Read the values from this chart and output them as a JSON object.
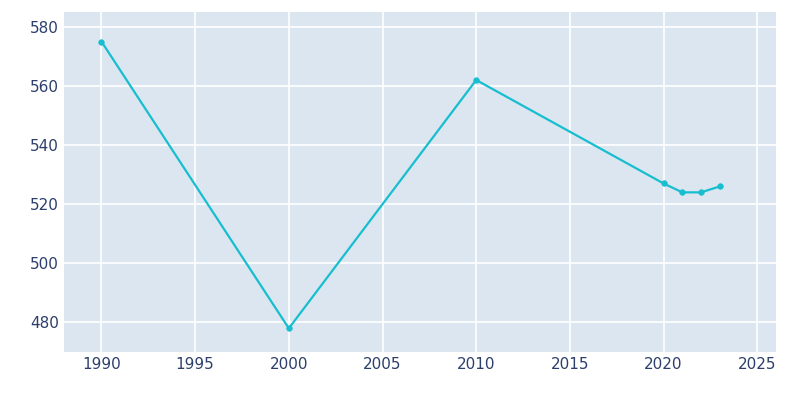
{
  "years": [
    1990,
    2000,
    2010,
    2020,
    2021,
    2022,
    2023
  ],
  "population": [
    575,
    478,
    562,
    527,
    524,
    524,
    526
  ],
  "line_color": "#17BECF",
  "marker_color": "#17BECF",
  "fig_bg_color": "#FFFFFF",
  "plot_bg_color": "#DCE6F0",
  "grid_color": "#FFFFFF",
  "tick_color": "#2C3E6B",
  "xlim": [
    1988,
    2026
  ],
  "ylim": [
    470,
    585
  ],
  "xticks": [
    1990,
    1995,
    2000,
    2005,
    2010,
    2015,
    2020,
    2025
  ],
  "yticks": [
    480,
    500,
    520,
    540,
    560,
    580
  ],
  "linewidth": 1.6,
  "markersize": 4,
  "tick_fontsize": 11
}
